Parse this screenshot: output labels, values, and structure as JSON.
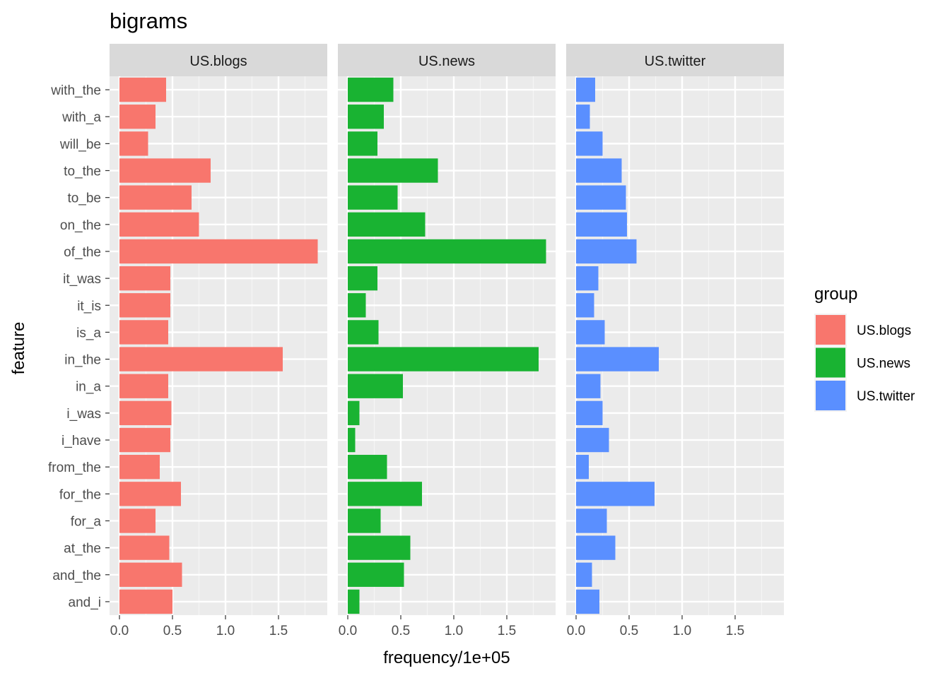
{
  "chart_data": {
    "type": "bar",
    "orientation": "horizontal",
    "title": "bigrams",
    "xlabel": "frequency/1e+05",
    "ylabel": "feature",
    "xlim": [
      0,
      1.92
    ],
    "x_ticks": [
      "0.0",
      "0.5",
      "1.0",
      "1.5"
    ],
    "x_tick_values": [
      0,
      0.5,
      1.0,
      1.5
    ],
    "grid": true,
    "legend": {
      "title": "group",
      "placement": "right"
    },
    "categories": [
      "with_the",
      "with_a",
      "will_be",
      "to_the",
      "to_be",
      "on_the",
      "of_the",
      "it_was",
      "it_is",
      "is_a",
      "in_the",
      "in_a",
      "i_was",
      "i_have",
      "from_the",
      "for_the",
      "for_a",
      "at_the",
      "and_the",
      "and_i"
    ],
    "series": [
      {
        "name": "US.blogs",
        "color": "#F8766D",
        "values": [
          0.44,
          0.34,
          0.27,
          0.86,
          0.68,
          0.75,
          1.87,
          0.48,
          0.48,
          0.46,
          1.54,
          0.46,
          0.49,
          0.48,
          0.38,
          0.58,
          0.34,
          0.47,
          0.59,
          0.5
        ]
      },
      {
        "name": "US.news",
        "color": "#19B332",
        "values": [
          0.43,
          0.34,
          0.28,
          0.85,
          0.47,
          0.73,
          1.87,
          0.28,
          0.17,
          0.29,
          1.8,
          0.52,
          0.11,
          0.07,
          0.37,
          0.7,
          0.31,
          0.59,
          0.53,
          0.11
        ]
      },
      {
        "name": "US.twitter",
        "color": "#5A8FFF",
        "values": [
          0.18,
          0.13,
          0.25,
          0.43,
          0.47,
          0.48,
          0.57,
          0.21,
          0.17,
          0.27,
          0.78,
          0.23,
          0.25,
          0.31,
          0.12,
          0.74,
          0.29,
          0.37,
          0.15,
          0.22
        ]
      }
    ]
  }
}
